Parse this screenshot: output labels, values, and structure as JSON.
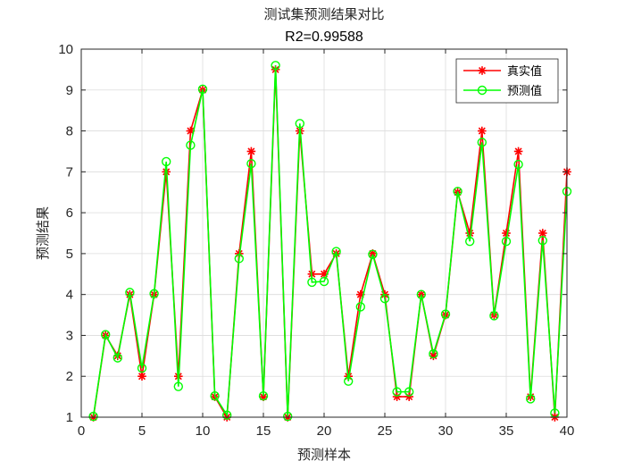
{
  "chart_data": {
    "type": "line",
    "title": "测试集预测结果对比",
    "subtitle": "R2=0.99588",
    "xlabel": "预测样本",
    "ylabel": "预测结果",
    "xlim": [
      0,
      40
    ],
    "ylim": [
      1,
      10
    ],
    "xticks": [
      0,
      5,
      10,
      15,
      20,
      25,
      30,
      35,
      40
    ],
    "yticks": [
      1,
      2,
      3,
      4,
      5,
      6,
      7,
      8,
      9,
      10
    ],
    "grid": true,
    "legend_position": "top-right",
    "x": [
      1,
      2,
      3,
      4,
      5,
      6,
      7,
      8,
      9,
      10,
      11,
      12,
      13,
      14,
      15,
      16,
      17,
      18,
      19,
      20,
      21,
      22,
      23,
      24,
      25,
      26,
      27,
      28,
      29,
      30,
      31,
      32,
      33,
      34,
      35,
      36,
      37,
      38,
      39,
      40
    ],
    "series": [
      {
        "name": "真实值",
        "color": "#ff0000",
        "marker": "asterisk",
        "values": [
          1,
          3,
          2.5,
          4,
          2,
          4,
          7,
          2,
          8,
          9,
          1.5,
          1,
          5,
          7.5,
          1.5,
          9.5,
          1,
          8,
          4.5,
          4.5,
          5,
          2,
          4,
          5,
          4,
          1.5,
          1.5,
          4,
          2.5,
          3.5,
          6.5,
          5.5,
          8,
          3.5,
          5.5,
          7.5,
          1.5,
          5.5,
          1,
          7
        ]
      },
      {
        "name": "预测值",
        "color": "#00ff00",
        "marker": "circle",
        "values": [
          1.02,
          3.02,
          2.45,
          4.05,
          2.2,
          4.02,
          7.25,
          1.75,
          7.65,
          9.02,
          1.52,
          1.05,
          4.88,
          7.2,
          1.52,
          9.6,
          1.02,
          8.18,
          4.3,
          4.32,
          5.05,
          1.88,
          3.7,
          4.98,
          3.9,
          1.62,
          1.62,
          4.0,
          2.55,
          3.52,
          6.52,
          5.3,
          7.72,
          3.48,
          5.3,
          7.18,
          1.45,
          5.32,
          1.1,
          6.52
        ]
      }
    ]
  }
}
